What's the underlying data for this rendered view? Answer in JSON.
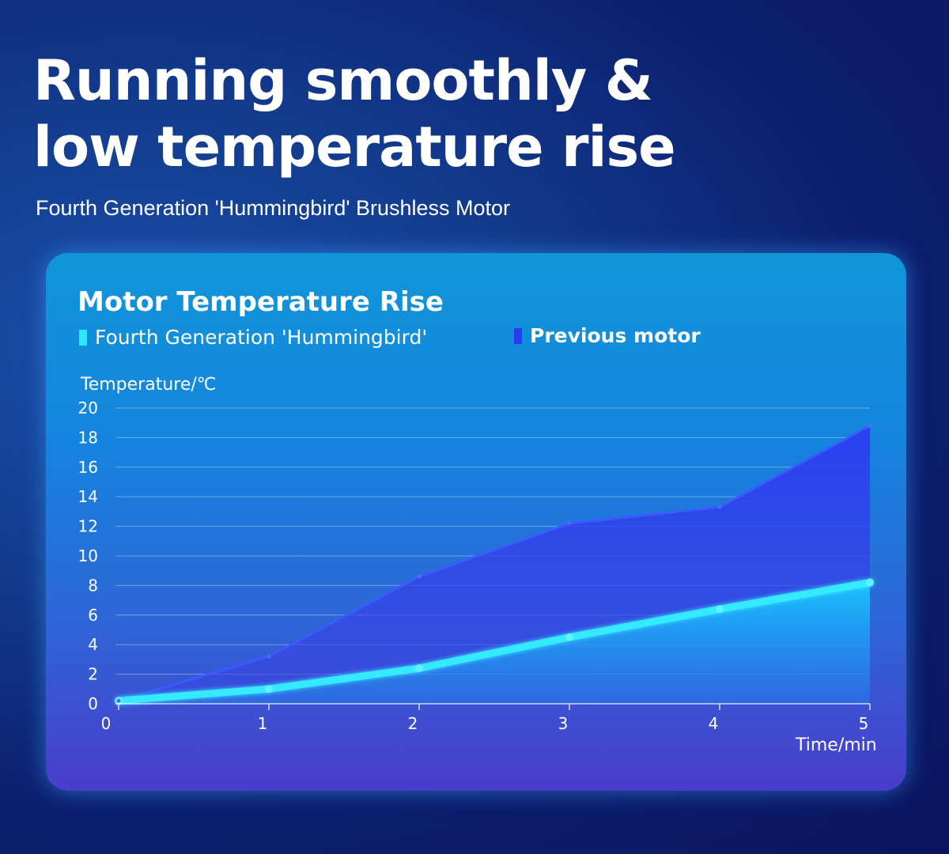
{
  "headline": {
    "line1": "Running smoothly &",
    "line2": "low temperature rise"
  },
  "subheadline": "Fourth Generation 'Hummingbird' Brushless Motor",
  "colors": {
    "hummingbird": "#2ee6ff",
    "previous": "#2a3cf2"
  },
  "chart_data": {
    "type": "area",
    "title": "Motor Temperature Rise",
    "xlabel": "Time/min",
    "ylabel": "Temperature/℃",
    "x": [
      0,
      1,
      2,
      3,
      4,
      5
    ],
    "xlim": [
      0,
      5
    ],
    "ylim": [
      0,
      20
    ],
    "y_ticks": [
      0,
      2,
      4,
      6,
      8,
      10,
      12,
      14,
      16,
      18,
      20
    ],
    "grid": true,
    "legend_position": "top",
    "series": [
      {
        "name": "Fourth Generation 'Hummingbird'",
        "values": [
          0.2,
          1.0,
          2.4,
          4.5,
          6.4,
          8.2
        ]
      },
      {
        "name": "Previous motor",
        "values": [
          0.2,
          3.2,
          8.6,
          12.2,
          13.3,
          18.8
        ]
      }
    ]
  }
}
